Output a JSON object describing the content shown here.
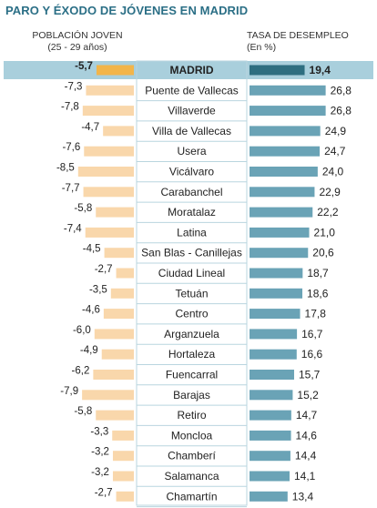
{
  "title": "PARO Y ÉXODO DE JÓVENES EN MADRID",
  "left_header": {
    "line1": "POBLACIÓN JOVEN",
    "line2": "(25 - 29 años)"
  },
  "right_header": {
    "line1": "TASA DE DESEMPLEO",
    "line2": "(En %)"
  },
  "colors": {
    "left_bar": "#f9d7ab",
    "left_bar_highlight": "#f2b54a",
    "right_bar": "#6aa3b6",
    "right_bar_highlight": "#2e6e80",
    "highlight_row_bg": "#a9cfdc",
    "label_border": "#b9d5df"
  },
  "chart_data": {
    "type": "bar",
    "categories": [
      "MADRID",
      "Puente de Vallecas",
      "Villaverde",
      "Villa de Vallecas",
      "Usera",
      "Vicálvaro",
      "Carabanchel",
      "Moratalaz",
      "Latina",
      "San Blas - Canillejas",
      "Ciudad Lineal",
      "Tetuán",
      "Centro",
      "Arganzuela",
      "Hortaleza",
      "Fuencarral",
      "Barajas",
      "Retiro",
      "Moncloa",
      "Chamberí",
      "Salamanca",
      "Chamartín"
    ],
    "category_labels": [
      "-5,7",
      "-7,3",
      "-7,8",
      "-4,7",
      "-7,6",
      "-8,5",
      "-7,7",
      "-5,8",
      "-7,4",
      "-4,5",
      "-2,7",
      "-3,5",
      "-4,6",
      "-6,0",
      "-4,9",
      "-6,2",
      "-7,9",
      "-5,8",
      "-3,3",
      "-3,2",
      "-3,2",
      "-2,7"
    ],
    "unemployment_labels": [
      "19,4",
      "26,8",
      "26,8",
      "24,9",
      "24,7",
      "24,0",
      "22,9",
      "22,2",
      "21,0",
      "20,6",
      "18,7",
      "18,6",
      "17,8",
      "16,7",
      "16,6",
      "15,7",
      "15,2",
      "14,7",
      "14,6",
      "14,4",
      "14,1",
      "13,4"
    ],
    "series": [
      {
        "name": "POBLACIÓN JOVEN",
        "values": [
          -5.7,
          -7.3,
          -7.8,
          -4.7,
          -7.6,
          -8.5,
          -7.7,
          -5.8,
          -7.4,
          -4.5,
          -2.7,
          -3.5,
          -4.6,
          -6.0,
          -4.9,
          -6.2,
          -7.9,
          -5.8,
          -3.3,
          -3.2,
          -3.2,
          -2.7
        ]
      },
      {
        "name": "TASA DE DESEMPLEO",
        "values": [
          19.4,
          26.8,
          26.8,
          24.9,
          24.7,
          24.0,
          22.9,
          22.2,
          21.0,
          20.6,
          18.7,
          18.6,
          17.8,
          16.7,
          16.6,
          15.7,
          15.2,
          14.7,
          14.6,
          14.4,
          14.1,
          13.4
        ]
      }
    ]
  }
}
